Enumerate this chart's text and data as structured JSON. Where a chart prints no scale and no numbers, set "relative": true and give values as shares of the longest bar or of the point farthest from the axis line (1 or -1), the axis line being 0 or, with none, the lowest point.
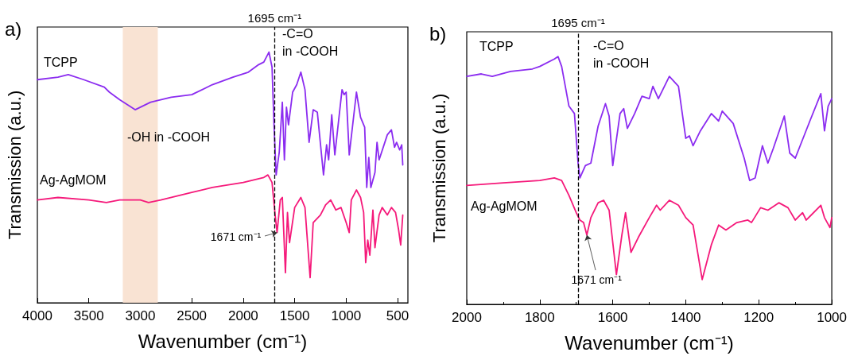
{
  "chart_data": [
    {
      "type": "line",
      "title": "a)",
      "xlabel": "Wavenumber (cm⁻¹)",
      "ylabel": "Transmission (a.u.)",
      "relative": true,
      "tick_labels": "x",
      "legend": false,
      "grid": false,
      "line_style": "solid",
      "xlim": [
        4000,
        400
      ],
      "xticks": [
        4000,
        3500,
        3000,
        2500,
        2000,
        1500,
        1000,
        500
      ],
      "series": [
        {
          "name": "TCPP",
          "color": "#8b2cf0",
          "x": [
            4000,
            3800,
            3700,
            3550,
            3350,
            3300,
            3200,
            3050,
            2900,
            2700,
            2500,
            2300,
            2100,
            1950,
            1850,
            1800,
            1750,
            1720,
            1700,
            1680,
            1650,
            1620,
            1600,
            1580,
            1560,
            1520,
            1480,
            1440,
            1400,
            1360,
            1320,
            1280,
            1220,
            1190,
            1170,
            1140,
            1110,
            1040,
            1020,
            1000,
            970,
            900,
            860,
            820,
            800,
            780,
            760,
            720,
            700,
            680,
            600,
            560,
            530,
            510,
            480,
            460,
            450
          ],
          "values": [
            0.89,
            0.9,
            0.91,
            0.89,
            0.86,
            0.84,
            0.81,
            0.77,
            0.8,
            0.82,
            0.83,
            0.87,
            0.9,
            0.92,
            0.95,
            0.96,
            1.0,
            0.94,
            0.7,
            0.51,
            0.6,
            0.8,
            0.57,
            0.78,
            0.71,
            0.84,
            0.87,
            0.92,
            0.85,
            0.64,
            0.77,
            0.76,
            0.51,
            0.63,
            0.57,
            0.75,
            0.59,
            0.85,
            0.83,
            0.84,
            0.59,
            0.84,
            0.74,
            0.7,
            0.46,
            0.58,
            0.46,
            0.52,
            0.64,
            0.57,
            0.67,
            0.69,
            0.62,
            0.64,
            0.61,
            0.63,
            0.55
          ]
        },
        {
          "name": "Ag-AgMOM",
          "color": "#f5197a",
          "x": [
            4000,
            3800,
            3500,
            3330,
            3200,
            3000,
            2920,
            2800,
            2500,
            2300,
            2000,
            1800,
            1760,
            1720,
            1690,
            1671,
            1640,
            1620,
            1590,
            1570,
            1550,
            1500,
            1440,
            1400,
            1350,
            1320,
            1250,
            1200,
            1150,
            1100,
            1050,
            1000,
            970,
            950,
            900,
            860,
            830,
            810,
            790,
            770,
            740,
            720,
            680,
            650,
            600,
            560,
            520,
            490,
            470,
            450
          ],
          "values": [
            0.41,
            0.42,
            0.41,
            0.4,
            0.41,
            0.41,
            0.4,
            0.41,
            0.44,
            0.46,
            0.48,
            0.5,
            0.51,
            0.48,
            0.35,
            0.28,
            0.41,
            0.42,
            0.12,
            0.36,
            0.24,
            0.38,
            0.42,
            0.38,
            0.1,
            0.32,
            0.35,
            0.39,
            0.41,
            0.37,
            0.38,
            0.32,
            0.28,
            0.41,
            0.45,
            0.42,
            0.36,
            0.16,
            0.25,
            0.19,
            0.37,
            0.22,
            0.35,
            0.38,
            0.35,
            0.38,
            0.36,
            0.29,
            0.23,
            0.35
          ]
        }
      ],
      "bands": [
        {
          "axis": "x",
          "from": 3170,
          "to": 2830,
          "color": "#f9e3d3"
        }
      ],
      "ref_lines": [
        {
          "axis": "x",
          "value": 1695,
          "label": "1695 cm⁻¹",
          "color": "#000000",
          "line_style": "dashed"
        }
      ],
      "annotations": [
        "-C=O\nin -COOH",
        "-OH in -COOH",
        {
          "text": "1671 cm⁻¹",
          "x": 1671,
          "y": 0.28
        }
      ]
    },
    {
      "type": "line",
      "title": "b)",
      "xlabel": "Wavenumber (cm⁻¹)",
      "ylabel": "Transmission (a.u.)",
      "relative": true,
      "tick_labels": "x",
      "legend": false,
      "grid": false,
      "line_style": "solid",
      "xlim": [
        2000,
        1000
      ],
      "xticks": [
        2000,
        1800,
        1600,
        1400,
        1200,
        1000
      ],
      "series": [
        {
          "name": "TCPP",
          "color": "#8b2cf0",
          "x": [
            2000,
            1960,
            1930,
            1880,
            1820,
            1800,
            1760,
            1750,
            1740,
            1720,
            1705,
            1695,
            1690,
            1675,
            1660,
            1640,
            1620,
            1610,
            1600,
            1580,
            1570,
            1560,
            1540,
            1520,
            1500,
            1490,
            1475,
            1445,
            1420,
            1400,
            1390,
            1380,
            1360,
            1330,
            1310,
            1300,
            1270,
            1240,
            1225,
            1210,
            1190,
            1175,
            1160,
            1130,
            1115,
            1100,
            1060,
            1030,
            1020,
            1010,
            1000
          ],
          "values": [
            0.92,
            0.93,
            0.92,
            0.94,
            0.95,
            0.96,
            0.99,
            1.0,
            0.96,
            0.8,
            0.77,
            0.57,
            0.51,
            0.56,
            0.57,
            0.72,
            0.81,
            0.76,
            0.56,
            0.77,
            0.79,
            0.71,
            0.77,
            0.84,
            0.83,
            0.88,
            0.83,
            0.92,
            0.88,
            0.67,
            0.68,
            0.64,
            0.7,
            0.77,
            0.74,
            0.78,
            0.73,
            0.59,
            0.5,
            0.51,
            0.64,
            0.57,
            0.63,
            0.76,
            0.61,
            0.59,
            0.74,
            0.85,
            0.7,
            0.8,
            0.83
          ]
        },
        {
          "name": "Ag-AgMOM",
          "color": "#f5197a",
          "x": [
            2000,
            1900,
            1800,
            1760,
            1740,
            1720,
            1700,
            1690,
            1680,
            1671,
            1660,
            1640,
            1625,
            1610,
            1590,
            1575,
            1565,
            1550,
            1530,
            1500,
            1480,
            1470,
            1445,
            1420,
            1400,
            1380,
            1355,
            1330,
            1310,
            1290,
            1260,
            1230,
            1220,
            1195,
            1175,
            1145,
            1120,
            1100,
            1080,
            1070,
            1030,
            1020,
            1005,
            1000
          ],
          "values": [
            0.48,
            0.49,
            0.5,
            0.51,
            0.5,
            0.44,
            0.37,
            0.34,
            0.33,
            0.28,
            0.35,
            0.41,
            0.42,
            0.38,
            0.12,
            0.28,
            0.37,
            0.21,
            0.27,
            0.35,
            0.4,
            0.38,
            0.42,
            0.4,
            0.35,
            0.32,
            0.1,
            0.24,
            0.32,
            0.3,
            0.33,
            0.34,
            0.33,
            0.39,
            0.38,
            0.41,
            0.39,
            0.34,
            0.37,
            0.34,
            0.4,
            0.35,
            0.31,
            0.35
          ]
        }
      ],
      "ref_lines": [
        {
          "axis": "x",
          "value": 1695,
          "label": "1695 cm⁻¹",
          "color": "#000000",
          "line_style": "dashed"
        }
      ],
      "annotations": [
        "-C=O\nin -COOH",
        {
          "text": "1671 cm⁻¹",
          "x": 1671,
          "y": 0.28
        }
      ]
    }
  ]
}
